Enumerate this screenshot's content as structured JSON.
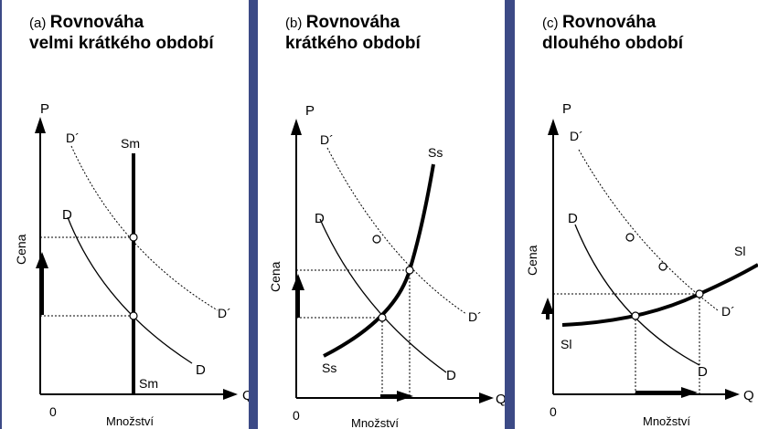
{
  "panels": [
    {
      "prefix": "(a)",
      "title_l1": "Rovnováha",
      "title_l2": "velmi krátkého období",
      "labels": {
        "p": "P",
        "q": "Q",
        "zero": "0",
        "cena": "Cena",
        "mnozstvi": "Množství",
        "d_prime_top": "D´",
        "d_prime_bot": "D´",
        "d_top": "D",
        "d_bot": "D",
        "s_top": "Sm",
        "s_bot": "Sm"
      }
    },
    {
      "prefix": "(b)",
      "title_l1": "Rovnováha",
      "title_l2": "krátkého období",
      "labels": {
        "p": "P",
        "q": "Q",
        "zero": "0",
        "cena": "Cena",
        "mnozstvi": "Množství",
        "d_prime_top": "D´",
        "d_prime_bot": "D´",
        "d_top": "D",
        "d_bot": "D",
        "s_top": "Ss",
        "s_bot": "Ss"
      }
    },
    {
      "prefix": "(c)",
      "title_l1": "Rovnováha",
      "title_l2": "dlouhého období",
      "labels": {
        "p": "P",
        "q": "Q",
        "zero": "0",
        "cena": "Cena",
        "mnozstvi": "Množství",
        "d_prime_top": "D´",
        "d_prime_bot": "D´",
        "d_top": "D",
        "d_bot": "D",
        "s_top": "Sl",
        "s_bot": "Sl"
      }
    }
  ],
  "colors": {
    "background": "#3c4a86",
    "panel": "#ffffff",
    "ink": "#000000"
  }
}
